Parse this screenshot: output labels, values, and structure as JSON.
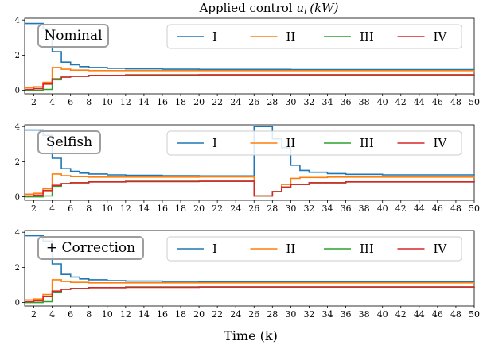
{
  "title_prefix": "Applied control",
  "title_var": "u",
  "title_sub": "i",
  "title_unit": "(kW)",
  "xlabel": "Time (k)",
  "xticks": [
    2,
    4,
    6,
    8,
    10,
    12,
    14,
    16,
    18,
    20,
    22,
    24,
    26,
    28,
    30,
    32,
    34,
    36,
    38,
    40,
    42,
    44,
    46,
    48,
    50
  ],
  "yticks": [
    0,
    2,
    4
  ],
  "legend": [
    "I",
    "II",
    "III",
    "IV"
  ],
  "colors": [
    "#1f77b4",
    "#ff7f0e",
    "#2ca02c",
    "#d62728"
  ],
  "chart_data": [
    {
      "type": "line",
      "step": "post",
      "label": "Nominal",
      "xlim": [
        1,
        50
      ],
      "ylim": [
        -0.2,
        4.1
      ],
      "series": [
        {
          "name": "I",
          "points": [
            [
              1,
              3.8
            ],
            [
              2,
              3.8
            ],
            [
              3,
              3.5
            ],
            [
              4,
              2.2
            ],
            [
              5,
              1.6
            ],
            [
              6,
              1.45
            ],
            [
              7,
              1.35
            ],
            [
              8,
              1.3
            ],
            [
              10,
              1.25
            ],
            [
              12,
              1.22
            ],
            [
              16,
              1.2
            ],
            [
              20,
              1.19
            ],
            [
              30,
              1.18
            ],
            [
              50,
              1.17
            ]
          ]
        },
        {
          "name": "II",
          "points": [
            [
              1,
              0.15
            ],
            [
              2,
              0.2
            ],
            [
              3,
              0.45
            ],
            [
              4,
              1.3
            ],
            [
              5,
              1.2
            ],
            [
              6,
              1.15
            ],
            [
              8,
              1.12
            ],
            [
              12,
              1.12
            ],
            [
              50,
              1.13
            ]
          ]
        },
        {
          "name": "III",
          "points": [
            [
              1,
              0.0
            ],
            [
              2,
              0.0
            ],
            [
              3,
              0.05
            ],
            [
              4,
              0.6
            ],
            [
              5,
              0.75
            ],
            [
              6,
              0.8
            ],
            [
              8,
              0.85
            ],
            [
              12,
              0.88
            ],
            [
              20,
              0.88
            ],
            [
              50,
              0.9
            ]
          ]
        },
        {
          "name": "IV",
          "points": [
            [
              1,
              0.05
            ],
            [
              2,
              0.1
            ],
            [
              3,
              0.35
            ],
            [
              4,
              0.65
            ],
            [
              5,
              0.75
            ],
            [
              6,
              0.8
            ],
            [
              8,
              0.85
            ],
            [
              12,
              0.87
            ],
            [
              20,
              0.88
            ],
            [
              50,
              0.9
            ]
          ]
        }
      ]
    },
    {
      "type": "line",
      "step": "post",
      "label": "Selfish",
      "xlim": [
        1,
        50
      ],
      "ylim": [
        -0.2,
        4.1
      ],
      "series": [
        {
          "name": "I",
          "points": [
            [
              1,
              3.8
            ],
            [
              2,
              3.8
            ],
            [
              3,
              3.5
            ],
            [
              4,
              2.2
            ],
            [
              5,
              1.6
            ],
            [
              6,
              1.45
            ],
            [
              7,
              1.35
            ],
            [
              8,
              1.3
            ],
            [
              10,
              1.25
            ],
            [
              12,
              1.22
            ],
            [
              16,
              1.2
            ],
            [
              20,
              1.19
            ],
            [
              26,
              4.0
            ],
            [
              28,
              3.3
            ],
            [
              29,
              2.8
            ],
            [
              30,
              1.8
            ],
            [
              31,
              1.5
            ],
            [
              32,
              1.4
            ],
            [
              34,
              1.32
            ],
            [
              36,
              1.28
            ],
            [
              40,
              1.25
            ],
            [
              50,
              1.22
            ]
          ]
        },
        {
          "name": "II",
          "points": [
            [
              1,
              0.15
            ],
            [
              2,
              0.2
            ],
            [
              3,
              0.45
            ],
            [
              4,
              1.3
            ],
            [
              5,
              1.2
            ],
            [
              6,
              1.15
            ],
            [
              8,
              1.12
            ],
            [
              12,
              1.12
            ],
            [
              20,
              1.13
            ],
            [
              26,
              0.05
            ],
            [
              28,
              0.3
            ],
            [
              29,
              0.7
            ],
            [
              30,
              1.05
            ],
            [
              31,
              1.1
            ],
            [
              34,
              1.12
            ],
            [
              50,
              1.13
            ]
          ]
        },
        {
          "name": "III",
          "points": [
            [
              1,
              0.0
            ],
            [
              2,
              0.0
            ],
            [
              3,
              0.05
            ],
            [
              4,
              0.6
            ],
            [
              5,
              0.75
            ],
            [
              6,
              0.8
            ],
            [
              8,
              0.85
            ],
            [
              12,
              0.88
            ],
            [
              20,
              0.88
            ],
            [
              26,
              0.05
            ],
            [
              28,
              0.3
            ],
            [
              29,
              0.55
            ],
            [
              30,
              0.7
            ],
            [
              32,
              0.8
            ],
            [
              36,
              0.85
            ],
            [
              50,
              0.88
            ]
          ]
        },
        {
          "name": "IV",
          "points": [
            [
              1,
              0.05
            ],
            [
              2,
              0.1
            ],
            [
              3,
              0.35
            ],
            [
              4,
              0.65
            ],
            [
              5,
              0.75
            ],
            [
              6,
              0.8
            ],
            [
              8,
              0.85
            ],
            [
              12,
              0.87
            ],
            [
              20,
              0.88
            ],
            [
              26,
              0.05
            ],
            [
              28,
              0.3
            ],
            [
              29,
              0.55
            ],
            [
              30,
              0.7
            ],
            [
              32,
              0.8
            ],
            [
              36,
              0.85
            ],
            [
              50,
              0.88
            ]
          ]
        }
      ]
    },
    {
      "type": "line",
      "step": "post",
      "label": "+ Correction",
      "xlim": [
        1,
        50
      ],
      "ylim": [
        -0.2,
        4.1
      ],
      "series": [
        {
          "name": "I",
          "points": [
            [
              1,
              3.8
            ],
            [
              2,
              3.8
            ],
            [
              3,
              3.5
            ],
            [
              4,
              2.2
            ],
            [
              5,
              1.6
            ],
            [
              6,
              1.45
            ],
            [
              7,
              1.35
            ],
            [
              8,
              1.3
            ],
            [
              10,
              1.25
            ],
            [
              12,
              1.22
            ],
            [
              16,
              1.2
            ],
            [
              20,
              1.19
            ],
            [
              30,
              1.18
            ],
            [
              50,
              1.17
            ]
          ]
        },
        {
          "name": "II",
          "points": [
            [
              1,
              0.15
            ],
            [
              2,
              0.2
            ],
            [
              3,
              0.45
            ],
            [
              4,
              1.3
            ],
            [
              5,
              1.2
            ],
            [
              6,
              1.15
            ],
            [
              8,
              1.12
            ],
            [
              12,
              1.12
            ],
            [
              50,
              1.13
            ]
          ]
        },
        {
          "name": "III",
          "points": [
            [
              1,
              0.0
            ],
            [
              2,
              0.0
            ],
            [
              3,
              0.05
            ],
            [
              4,
              0.6
            ],
            [
              5,
              0.75
            ],
            [
              6,
              0.8
            ],
            [
              8,
              0.85
            ],
            [
              12,
              0.88
            ],
            [
              20,
              0.88
            ],
            [
              50,
              0.9
            ]
          ]
        },
        {
          "name": "IV",
          "points": [
            [
              1,
              0.05
            ],
            [
              2,
              0.1
            ],
            [
              3,
              0.35
            ],
            [
              4,
              0.65
            ],
            [
              5,
              0.75
            ],
            [
              6,
              0.8
            ],
            [
              8,
              0.85
            ],
            [
              12,
              0.87
            ],
            [
              20,
              0.88
            ],
            [
              50,
              0.9
            ]
          ]
        }
      ]
    }
  ]
}
